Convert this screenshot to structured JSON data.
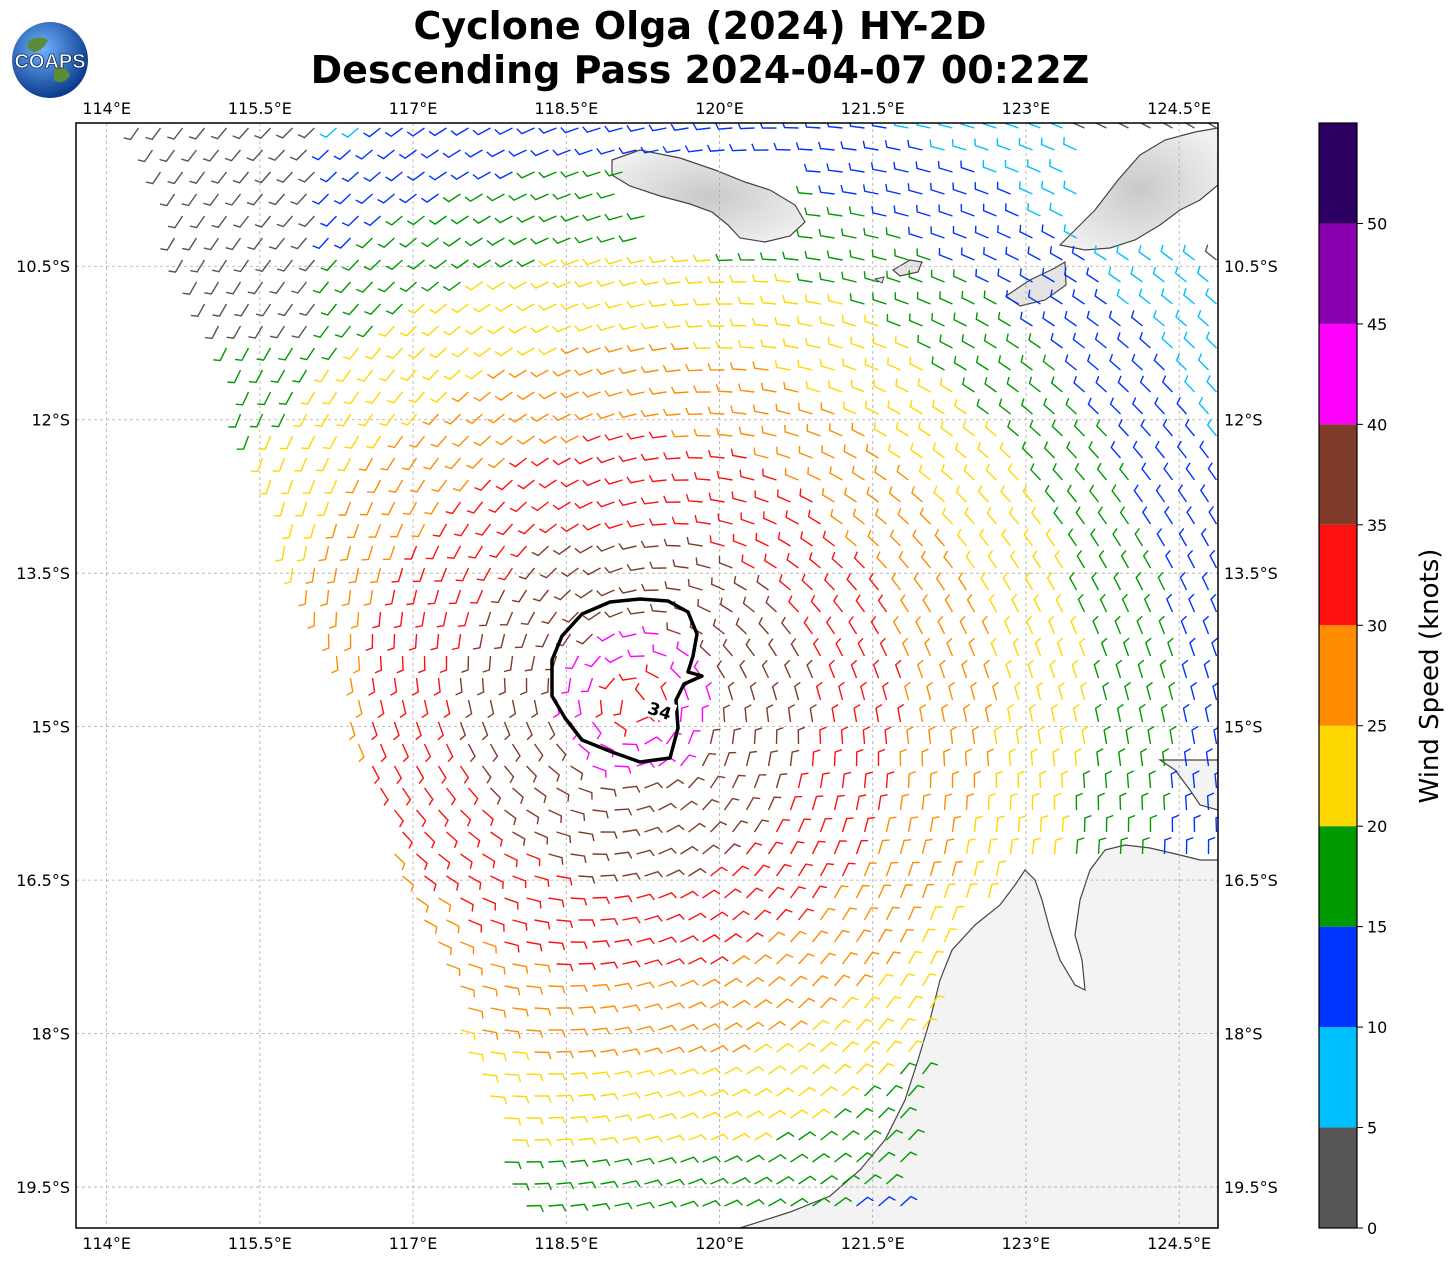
{
  "title": {
    "line1": "Cyclone Olga (2024) HY-2D",
    "line2": "Descending Pass 2024-04-07 00:22Z"
  },
  "logo": {
    "text": "COAPS",
    "icon": "globe-icon"
  },
  "map": {
    "lon_range": [
      113.7,
      124.88
    ],
    "lat_range": [
      -19.9,
      -9.1
    ],
    "lon_ticks": [
      "114°E",
      "115.5°E",
      "117°E",
      "118.5°E",
      "120°E",
      "121.5°E",
      "123°E",
      "124.5°E"
    ],
    "lon_tick_values": [
      114,
      115.5,
      117,
      118.5,
      120,
      121.5,
      123,
      124.5
    ],
    "lat_ticks": [
      "10.5°S",
      "12°S",
      "13.5°S",
      "15°S",
      "16.5°S",
      "18°S",
      "19.5°S"
    ],
    "lat_tick_values": [
      -10.5,
      -12,
      -13.5,
      -15,
      -16.5,
      -18,
      -19.5
    ],
    "gridlines": true,
    "contour_label": "34",
    "cyclone_center": {
      "lon": 119.7,
      "lat": -14.3
    }
  },
  "colorbar": {
    "label": "Wind Speed (knots)",
    "ticks": [
      "0",
      "5",
      "10",
      "15",
      "20",
      "25",
      "30",
      "35",
      "40",
      "45",
      "50"
    ],
    "bins": [
      {
        "min": 0,
        "max": 5,
        "color": "#555555"
      },
      {
        "min": 5,
        "max": 10,
        "color": "#00bfff"
      },
      {
        "min": 10,
        "max": 15,
        "color": "#0033ff"
      },
      {
        "min": 15,
        "max": 20,
        "color": "#009900"
      },
      {
        "min": 20,
        "max": 25,
        "color": "#ffd700"
      },
      {
        "min": 25,
        "max": 30,
        "color": "#ff8c00"
      },
      {
        "min": 30,
        "max": 35,
        "color": "#ff1010"
      },
      {
        "min": 35,
        "max": 40,
        "color": "#7f3c2a"
      },
      {
        "min": 40,
        "max": 45,
        "color": "#ff00ff"
      },
      {
        "min": 45,
        "max": 50,
        "color": "#8a00b0"
      },
      {
        "min": 50,
        "max": 55,
        "color": "#2c0060"
      }
    ]
  }
}
